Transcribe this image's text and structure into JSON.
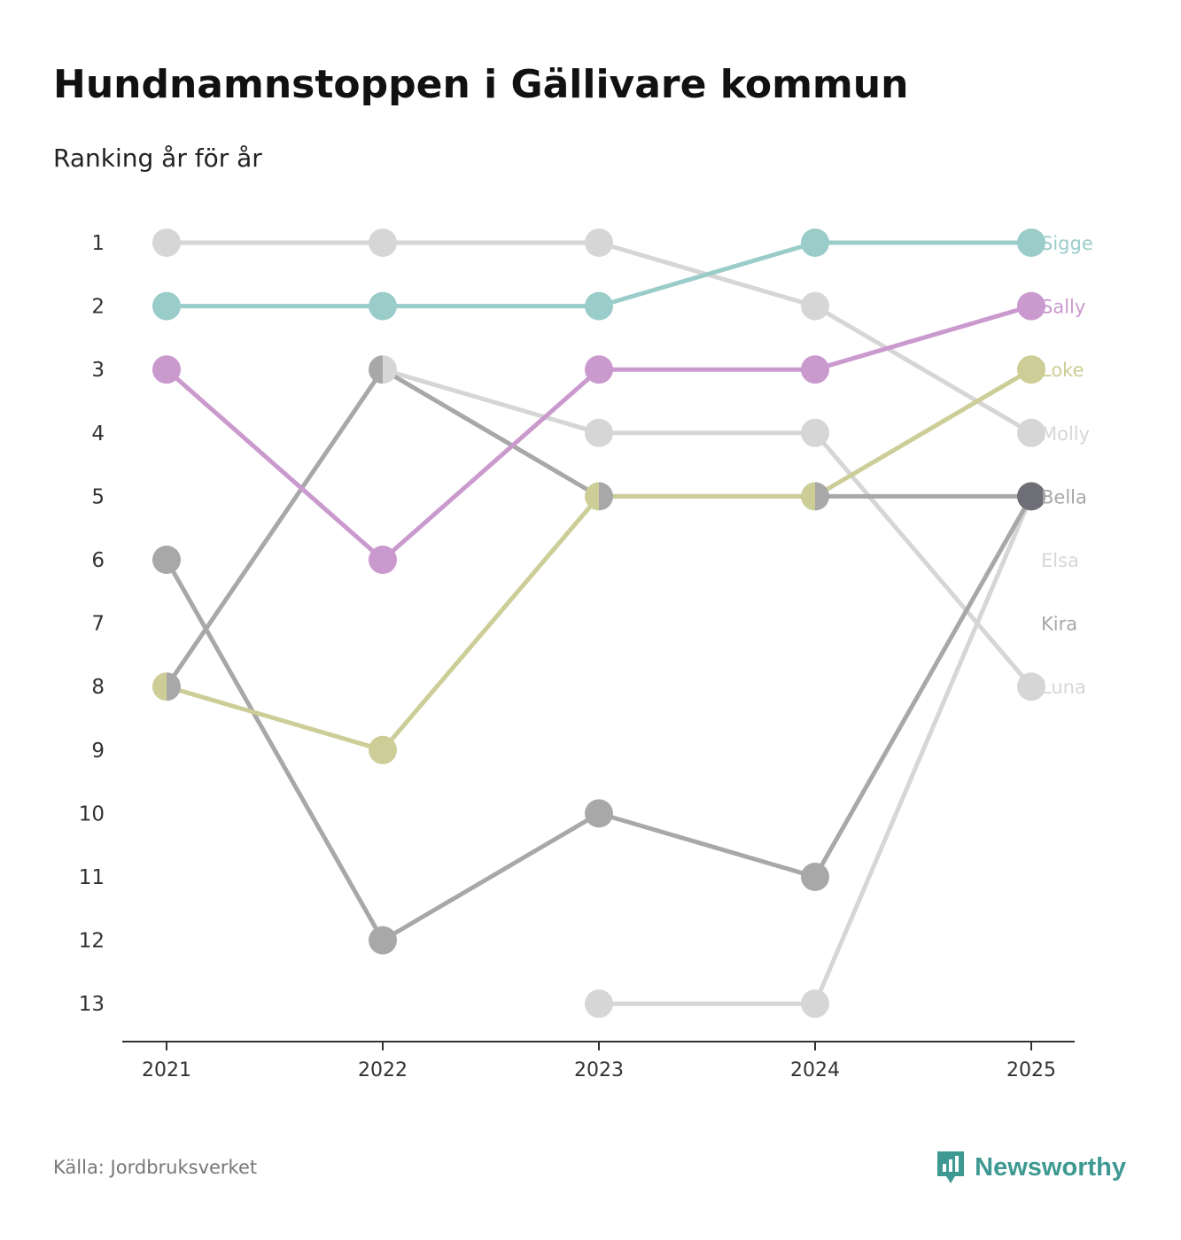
{
  "title": "Hundnamnstoppen i Gällivare kommun",
  "subtitle": "Ranking år för år",
  "source": "Källa: Jordbruksverket",
  "brand": {
    "name": "Newsworthy",
    "icon": "newsworthy-logo-icon",
    "color": "#3d9992"
  },
  "chart_data": {
    "type": "line",
    "subtype": "bump",
    "title": "Hundnamnstoppen i Gällivare kommun",
    "subtitle": "Ranking år för år",
    "x": [
      "2021",
      "2022",
      "2023",
      "2024",
      "2025"
    ],
    "y_ticks": [
      "1",
      "2",
      "3",
      "4",
      "5",
      "6",
      "7",
      "8",
      "9",
      "10",
      "11",
      "12",
      "13"
    ],
    "ylim": [
      1,
      13
    ],
    "y_inverted": true,
    "series": [
      {
        "name": "Molly",
        "color": "#d6d6d6",
        "values": [
          1,
          1,
          1,
          2,
          4
        ],
        "label_rank": 4
      },
      {
        "name": "Luna",
        "color": "#d6d6d6",
        "values": [
          null,
          3,
          4,
          4,
          8
        ],
        "label_rank": 8
      },
      {
        "name": "Elsa",
        "color": "#d6d6d6",
        "values": [
          null,
          null,
          13,
          13,
          5
        ],
        "label_rank": 6
      },
      {
        "name": "Kira",
        "color": "#a8a8a8",
        "values": [
          6,
          12,
          10,
          11,
          5
        ],
        "label_rank": 7
      },
      {
        "name": "Bella",
        "color": "#a8a8a8",
        "values": [
          8,
          3,
          5,
          5,
          5
        ],
        "label_rank": 5
      },
      {
        "name": "Loke",
        "color": "#cdcd98",
        "values": [
          8,
          9,
          5,
          5,
          3
        ],
        "label_rank": 3
      },
      {
        "name": "Sally",
        "color": "#ca99ce",
        "values": [
          3,
          6,
          3,
          3,
          2
        ],
        "label_rank": 2
      },
      {
        "name": "Sigge",
        "color": "#9accca",
        "values": [
          2,
          2,
          2,
          1,
          1
        ],
        "label_rank": 1
      }
    ],
    "overlap_marker_color": "#6e6e76",
    "grid": false,
    "legend": "direct labels at right end"
  }
}
